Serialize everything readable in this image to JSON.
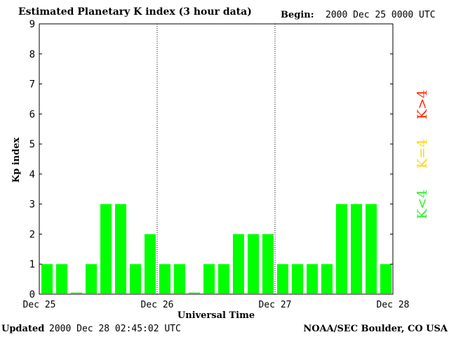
{
  "header": {
    "title": "Estimated Planetary K index (3 hour data)",
    "begin_label": "Begin:",
    "begin_value": "2000 Dec 25 0000 UTC"
  },
  "footer": {
    "updated_label": "Updated",
    "updated_value": "2000 Dec 28 02:45:02 UTC",
    "credit": "NOAA/SEC Boulder, CO USA"
  },
  "legend": [
    {
      "label": "K>4",
      "color": "#ff2a00"
    },
    {
      "label": "K=4",
      "color": "#ffd700"
    },
    {
      "label": "K<4",
      "color": "#33ee33"
    }
  ],
  "chart_data": {
    "type": "bar",
    "ylabel": "Kp index",
    "xlabel": "Universal Time",
    "ylim": [
      0,
      9
    ],
    "yticks": [
      "0",
      "1",
      "2",
      "3",
      "4",
      "5",
      "6",
      "7",
      "8",
      "9"
    ],
    "xticks": [
      "Dec 25",
      "Dec 26",
      "Dec 27",
      "Dec 28"
    ],
    "bar_color": "#00ff00",
    "values": [
      1,
      1,
      0.05,
      1,
      3,
      3,
      1,
      2,
      1,
      1,
      0.05,
      1,
      1,
      2,
      2,
      2,
      1,
      1,
      1,
      1,
      3,
      3,
      3,
      1
    ]
  }
}
